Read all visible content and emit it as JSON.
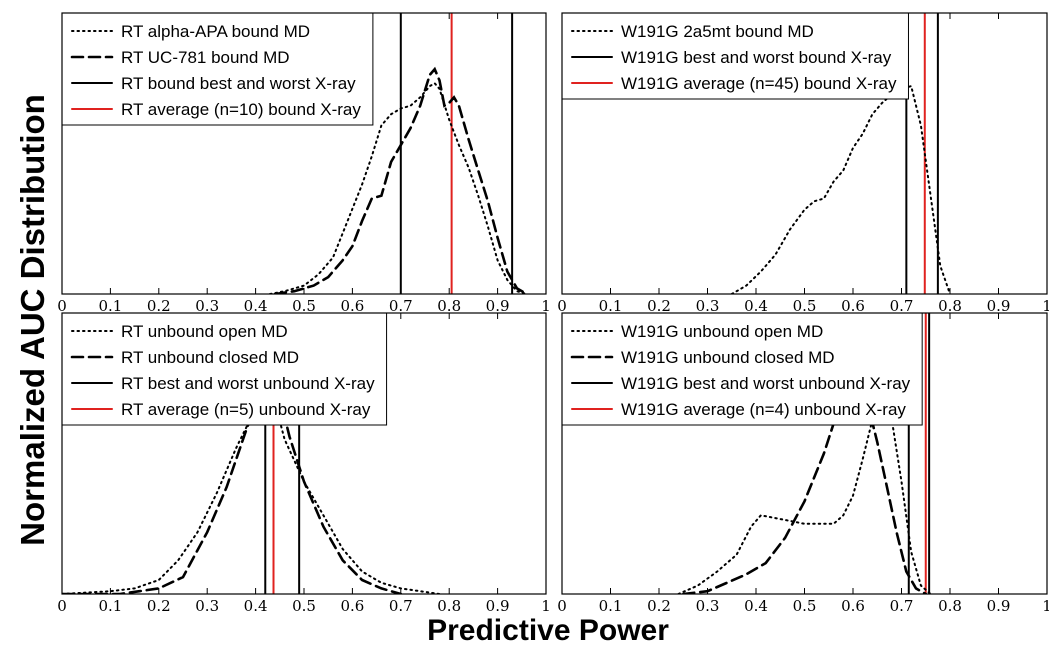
{
  "figure": {
    "ylabel": "Normalized AUC Distribution",
    "xlabel": "Predictive Power"
  },
  "colors": {
    "md_curve": "#000000",
    "xray_extreme": "#000000",
    "xray_average": "#e0221f"
  },
  "chart_data": [
    {
      "type": "line",
      "panel": "top-left",
      "xlim": [
        0,
        1
      ],
      "ylim": [
        0,
        1
      ],
      "xticks": [
        "0",
        "0.1",
        "0.2",
        "0.3",
        "0.4",
        "0.5",
        "0.6",
        "0.7",
        "0.8",
        "0.9",
        "1"
      ],
      "legend_position": "top-left",
      "series": [
        {
          "name": "RT alpha-APA bound MD",
          "style": "dotted",
          "x": [
            0.43,
            0.46,
            0.5,
            0.53,
            0.56,
            0.59,
            0.62,
            0.64,
            0.66,
            0.68,
            0.7,
            0.72,
            0.74,
            0.75,
            0.76,
            0.77,
            0.78,
            0.8,
            0.82,
            0.84,
            0.86,
            0.88,
            0.9,
            0.92,
            0.94,
            0.96
          ],
          "y": [
            0,
            0.01,
            0.03,
            0.07,
            0.13,
            0.26,
            0.39,
            0.49,
            0.6,
            0.64,
            0.66,
            0.67,
            0.7,
            0.72,
            0.74,
            0.75,
            0.73,
            0.62,
            0.53,
            0.45,
            0.35,
            0.24,
            0.12,
            0.05,
            0.01,
            0
          ]
        },
        {
          "name": "RT UC-781 bound MD",
          "style": "dashed",
          "x": [
            0.44,
            0.48,
            0.52,
            0.55,
            0.58,
            0.6,
            0.62,
            0.64,
            0.66,
            0.68,
            0.7,
            0.72,
            0.74,
            0.76,
            0.77,
            0.78,
            0.79,
            0.8,
            0.81,
            0.82,
            0.84,
            0.86,
            0.88,
            0.9,
            0.92,
            0.94,
            0.96
          ],
          "y": [
            0,
            0.01,
            0.03,
            0.06,
            0.12,
            0.17,
            0.26,
            0.34,
            0.35,
            0.47,
            0.53,
            0.59,
            0.67,
            0.78,
            0.8,
            0.76,
            0.67,
            0.68,
            0.7,
            0.67,
            0.55,
            0.44,
            0.33,
            0.2,
            0.08,
            0.02,
            0
          ]
        }
      ],
      "vlines": [
        {
          "name": "RT bound best and worst X-ray",
          "x": [
            0.7,
            0.93
          ],
          "color": "#000000"
        },
        {
          "name": "RT average (n=10) bound X-ray",
          "x": [
            0.805
          ],
          "color": "#e0221f"
        }
      ]
    },
    {
      "type": "line",
      "panel": "top-right",
      "xlim": [
        0,
        1
      ],
      "ylim": [
        0,
        1
      ],
      "xticks": [
        "0",
        "0.1",
        "0.2",
        "0.3",
        "0.4",
        "0.5",
        "0.6",
        "0.7",
        "0.8",
        "0.9",
        "1"
      ],
      "legend_position": "top-left",
      "series": [
        {
          "name": "W191G 2a5mt bound MD",
          "style": "dotted",
          "x": [
            0.35,
            0.38,
            0.41,
            0.44,
            0.47,
            0.5,
            0.52,
            0.54,
            0.56,
            0.58,
            0.6,
            0.62,
            0.64,
            0.66,
            0.68,
            0.7,
            0.72,
            0.74,
            0.76,
            0.78,
            0.8
          ],
          "y": [
            0,
            0.03,
            0.08,
            0.14,
            0.23,
            0.3,
            0.33,
            0.34,
            0.4,
            0.44,
            0.52,
            0.57,
            0.64,
            0.68,
            0.71,
            0.73,
            0.74,
            0.6,
            0.35,
            0.1,
            0
          ]
        }
      ],
      "vlines": [
        {
          "name": "W191G best and worst bound X-ray",
          "x": [
            0.71,
            0.775
          ],
          "color": "#000000"
        },
        {
          "name": "W191G average (n=45) bound X-ray",
          "x": [
            0.748
          ],
          "color": "#e0221f"
        }
      ]
    },
    {
      "type": "line",
      "panel": "bottom-left",
      "xlim": [
        0,
        1
      ],
      "ylim": [
        0,
        1
      ],
      "xticks": [
        "0",
        "0.1",
        "0.2",
        "0.3",
        "0.4",
        "0.5",
        "0.6",
        "0.7",
        "0.8",
        "0.9",
        "1"
      ],
      "legend_position": "top-left",
      "series": [
        {
          "name": "RT unbound open MD",
          "style": "dotted",
          "x": [
            0,
            0.1,
            0.15,
            0.2,
            0.24,
            0.28,
            0.32,
            0.36,
            0.4,
            0.44,
            0.46,
            0.5,
            0.54,
            0.58,
            0.62,
            0.66,
            0.7,
            0.74,
            0.78
          ],
          "y": [
            0,
            0.01,
            0.02,
            0.05,
            0.12,
            0.22,
            0.36,
            0.52,
            0.66,
            0.68,
            0.55,
            0.4,
            0.28,
            0.16,
            0.08,
            0.04,
            0.02,
            0.01,
            0
          ]
        },
        {
          "name": "RT unbound closed MD",
          "style": "dashed",
          "x": [
            0,
            0.12,
            0.16,
            0.2,
            0.25,
            0.3,
            0.34,
            0.38,
            0.41,
            0.43,
            0.45,
            0.47,
            0.5,
            0.54,
            0.58,
            0.62,
            0.66,
            0.7
          ],
          "y": [
            0,
            0,
            0.01,
            0.02,
            0.06,
            0.22,
            0.38,
            0.58,
            0.72,
            0.76,
            0.7,
            0.56,
            0.4,
            0.24,
            0.12,
            0.05,
            0.02,
            0
          ]
        }
      ],
      "vlines": [
        {
          "name": "RT best and worst unbound X-ray",
          "x": [
            0.42,
            0.49
          ],
          "color": "#000000"
        },
        {
          "name": "RT average (n=5) unbound X-ray",
          "x": [
            0.437
          ],
          "color": "#e0221f"
        }
      ]
    },
    {
      "type": "line",
      "panel": "bottom-right",
      "xlim": [
        0,
        1
      ],
      "ylim": [
        0,
        1
      ],
      "xticks": [
        "0",
        "0.1",
        "0.2",
        "0.3",
        "0.4",
        "0.5",
        "0.6",
        "0.7",
        "0.8",
        "0.9",
        "1"
      ],
      "legend_position": "top-left",
      "series": [
        {
          "name": "W191G unbound open MD",
          "style": "dotted",
          "x": [
            0.24,
            0.28,
            0.32,
            0.36,
            0.39,
            0.41,
            0.44,
            0.47,
            0.5,
            0.53,
            0.56,
            0.58,
            0.6,
            0.62,
            0.64,
            0.66,
            0.68,
            0.7,
            0.72,
            0.74,
            0.76
          ],
          "y": [
            0,
            0.03,
            0.08,
            0.14,
            0.24,
            0.28,
            0.27,
            0.26,
            0.25,
            0.25,
            0.25,
            0.28,
            0.35,
            0.48,
            0.62,
            0.67,
            0.62,
            0.4,
            0.15,
            0.03,
            0
          ]
        },
        {
          "name": "W191G unbound closed MD",
          "style": "dashed",
          "x": [
            0.25,
            0.3,
            0.34,
            0.38,
            0.42,
            0.46,
            0.5,
            0.54,
            0.57,
            0.59,
            0.61,
            0.63,
            0.65,
            0.67,
            0.69,
            0.71,
            0.73,
            0.75
          ],
          "y": [
            0,
            0.01,
            0.04,
            0.07,
            0.11,
            0.2,
            0.33,
            0.5,
            0.66,
            0.76,
            0.76,
            0.68,
            0.54,
            0.38,
            0.22,
            0.08,
            0.02,
            0
          ]
        }
      ],
      "vlines": [
        {
          "name": "W191G best and worst unbound X-ray",
          "x": [
            0.715,
            0.757
          ],
          "color": "#000000"
        },
        {
          "name": "W191G average (n=4) unbound X-ray",
          "x": [
            0.75
          ],
          "color": "#e0221f"
        }
      ]
    }
  ]
}
